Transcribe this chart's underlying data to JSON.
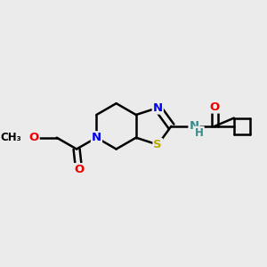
{
  "bg_color": "#ebebeb",
  "bond_color": "#000000",
  "bond_width": 1.8,
  "atom_colors": {
    "N": "#0000ee",
    "O": "#ee0000",
    "S": "#bbaa00",
    "H": "#3a8a8a",
    "C": "#000000"
  },
  "font_size": 9.5,
  "fig_size": [
    3.0,
    3.0
  ],
  "dpi": 100
}
